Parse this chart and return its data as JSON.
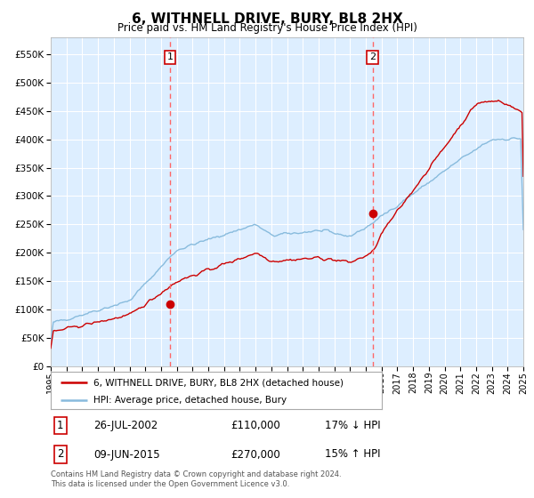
{
  "title": "6, WITHNELL DRIVE, BURY, BL8 2HX",
  "subtitle": "Price paid vs. HM Land Registry's House Price Index (HPI)",
  "legend_line1": "6, WITHNELL DRIVE, BURY, BL8 2HX (detached house)",
  "legend_line2": "HPI: Average price, detached house, Bury",
  "transaction1_date": "26-JUL-2002",
  "transaction1_price": 110000,
  "transaction1_note": "17% ↓ HPI",
  "transaction2_date": "09-JUN-2015",
  "transaction2_price": 270000,
  "transaction2_note": "15% ↑ HPI",
  "footer": "Contains HM Land Registry data © Crown copyright and database right 2024.\nThis data is licensed under the Open Government Licence v3.0.",
  "plot_bg_color": "#ddeeff",
  "grid_color": "#ffffff",
  "red_line_color": "#cc0000",
  "blue_line_color": "#88bbdd",
  "dashed_line_color": "#ff6666",
  "marker_color": "#cc0000",
  "ylim_min": 0,
  "ylim_max": 580000,
  "year_start": 1995,
  "year_end": 2025,
  "transaction1_year": 2002.57,
  "transaction2_year": 2015.44
}
